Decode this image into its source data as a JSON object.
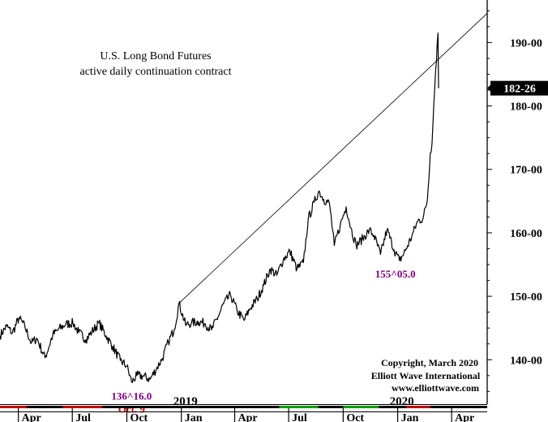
{
  "chart_data": {
    "type": "line",
    "title": "U.S. Long Bond Futures",
    "subtitle": "active daily continuation contract",
    "y_ticks": [
      140,
      150,
      160,
      170,
      180,
      190
    ],
    "y_tick_labels": [
      "140-00",
      "150-00",
      "160-00",
      "170-00",
      "180-00",
      "190-00"
    ],
    "ylim": [
      133.0,
      196.7
    ],
    "xlim": [
      "2018-03-01",
      "2020-05-31"
    ],
    "x_month_labels": [
      {
        "date": "2018-04-01",
        "label": "Apr"
      },
      {
        "date": "2018-07-01",
        "label": "Jul"
      },
      {
        "date": "2018-10-01",
        "label": "Oct"
      },
      {
        "date": "2019-01-01",
        "label": "Jan"
      },
      {
        "date": "2019-04-01",
        "label": "Apr"
      },
      {
        "date": "2019-07-01",
        "label": "Jul"
      },
      {
        "date": "2019-10-01",
        "label": "Oct"
      },
      {
        "date": "2020-01-01",
        "label": "Jan"
      },
      {
        "date": "2020-04-01",
        "label": "Apr"
      }
    ],
    "year_labels": [
      {
        "date": "2019-01-01",
        "label": "2019"
      },
      {
        "date": "2020-01-01",
        "label": "2020"
      }
    ],
    "series": [
      {
        "values": [
          [
            "2018-03-01",
            143.8
          ],
          [
            "2018-03-12",
            145.3
          ],
          [
            "2018-03-22",
            144.2
          ],
          [
            "2018-04-02",
            146.6
          ],
          [
            "2018-04-12",
            145.2
          ],
          [
            "2018-04-23",
            142.6
          ],
          [
            "2018-05-02",
            143.4
          ],
          [
            "2018-05-16",
            140.3
          ],
          [
            "2018-05-29",
            143.9
          ],
          [
            "2018-06-08",
            144.8
          ],
          [
            "2018-06-20",
            145.6
          ],
          [
            "2018-07-02",
            145.8
          ],
          [
            "2018-07-12",
            144.3
          ],
          [
            "2018-07-24",
            143.2
          ],
          [
            "2018-08-03",
            144.4
          ],
          [
            "2018-08-15",
            145.8
          ],
          [
            "2018-08-27",
            143.8
          ],
          [
            "2018-09-07",
            142.1
          ],
          [
            "2018-09-20",
            139.9
          ],
          [
            "2018-10-01",
            139.0
          ],
          [
            "2018-10-09",
            136.5
          ],
          [
            "2018-10-18",
            137.5
          ],
          [
            "2018-10-30",
            137.4
          ],
          [
            "2018-11-09",
            136.9
          ],
          [
            "2018-11-20",
            138.6
          ],
          [
            "2018-11-30",
            140.2
          ],
          [
            "2018-12-10",
            142.8
          ],
          [
            "2018-12-20",
            144.8
          ],
          [
            "2018-12-28",
            148.9
          ],
          [
            "2019-01-08",
            145.5
          ],
          [
            "2019-01-18",
            145.8
          ],
          [
            "2019-01-30",
            146.0
          ],
          [
            "2019-02-10",
            145.7
          ],
          [
            "2019-02-21",
            144.7
          ],
          [
            "2019-03-04",
            146.8
          ],
          [
            "2019-03-13",
            148.8
          ],
          [
            "2019-03-25",
            150.2
          ],
          [
            "2019-04-05",
            147.7
          ],
          [
            "2019-04-17",
            146.2
          ],
          [
            "2019-04-27",
            148.1
          ],
          [
            "2019-05-09",
            149.6
          ],
          [
            "2019-05-20",
            151.8
          ],
          [
            "2019-05-31",
            154.3
          ],
          [
            "2019-06-11",
            153.3
          ],
          [
            "2019-06-22",
            155.8
          ],
          [
            "2019-07-03",
            157.1
          ],
          [
            "2019-07-15",
            154.3
          ],
          [
            "2019-07-26",
            155.3
          ],
          [
            "2019-08-03",
            162.1
          ],
          [
            "2019-08-13",
            164.8
          ],
          [
            "2019-08-21",
            166.6
          ],
          [
            "2019-08-29",
            165.3
          ],
          [
            "2019-09-08",
            164.6
          ],
          [
            "2019-09-16",
            158.0
          ],
          [
            "2019-09-26",
            161.2
          ],
          [
            "2019-10-06",
            164.1
          ],
          [
            "2019-10-14",
            160.8
          ],
          [
            "2019-10-23",
            158.0
          ],
          [
            "2019-11-03",
            159.1
          ],
          [
            "2019-11-14",
            160.4
          ],
          [
            "2019-11-22",
            159.6
          ],
          [
            "2019-12-03",
            156.6
          ],
          [
            "2019-12-14",
            160.5
          ],
          [
            "2019-12-26",
            157.3
          ],
          [
            "2020-01-04",
            155.6
          ],
          [
            "2020-01-14",
            157.2
          ],
          [
            "2020-01-25",
            159.5
          ],
          [
            "2020-02-04",
            161.9
          ],
          [
            "2020-02-13",
            162.3
          ],
          [
            "2020-02-20",
            165.2
          ],
          [
            "2020-02-25",
            172.6
          ],
          [
            "2020-02-28",
            174.2
          ],
          [
            "2020-03-02",
            180.4
          ],
          [
            "2020-03-05",
            185.7
          ],
          [
            "2020-03-09",
            191.5
          ],
          [
            "2020-03-10",
            182.8
          ]
        ]
      }
    ],
    "trendline": {
      "from": [
        "2018-12-28",
        148.9
      ],
      "to": [
        "2020-05-31",
        194.6
      ]
    },
    "annotations": [
      {
        "text": "136^16.0",
        "date": "2018-10-09",
        "value": 136.5,
        "color": "#800080"
      },
      {
        "text": "Oct. 9",
        "date": "2018-10-09",
        "value": 136.5,
        "color": "#e00000"
      },
      {
        "text": "155^05.0",
        "date": "2019-12-28",
        "value": 156.0,
        "color": "#800080"
      }
    ],
    "last_value_label": "182-26",
    "last_value": 182.8,
    "copyright": [
      "Copyright, March 2020",
      "Elliott Wave International",
      "www.elliottwave.com"
    ]
  }
}
